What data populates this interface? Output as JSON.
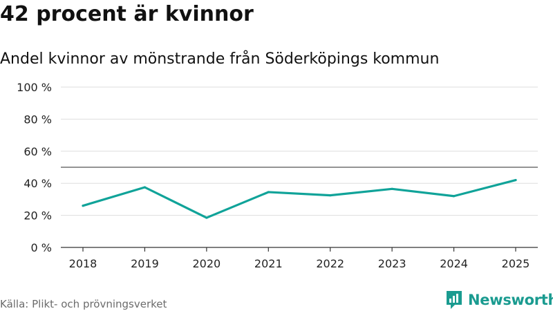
{
  "title": "42 procent är kvinnor",
  "subtitle": "Andel kvinnor av mönstrande från Söderköpings kommun",
  "source": "Källa: Plikt- och prövningsverket",
  "brand": {
    "name": "Newsworthy",
    "color": "#1a9b90",
    "icon": "newsworthy-logo-icon"
  },
  "chart_data": {
    "type": "line",
    "title": "42 procent är kvinnor",
    "subtitle": "Andel kvinnor av mönstrande från Söderköpings kommun",
    "xlabel": "",
    "ylabel": "",
    "x": [
      "2018",
      "2019",
      "2020",
      "2021",
      "2022",
      "2023",
      "2024",
      "2025"
    ],
    "series": [
      {
        "name": "Andel kvinnor",
        "values": [
          26,
          37.5,
          18.5,
          34.5,
          32.5,
          36.5,
          32,
          42
        ],
        "color": "#10a399"
      }
    ],
    "ylim": [
      0,
      100
    ],
    "yticks": [
      0,
      20,
      40,
      60,
      80,
      100
    ],
    "ytick_labels": [
      "0 %",
      "20 %",
      "40 %",
      "60 %",
      "80 %",
      "100 %"
    ],
    "reference_line": 50,
    "grid": true,
    "legend": "none"
  }
}
